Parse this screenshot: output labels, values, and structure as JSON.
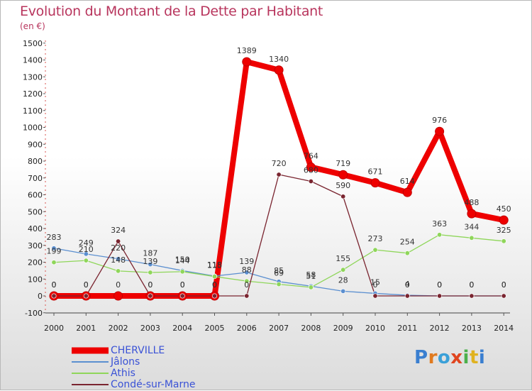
{
  "header": {
    "title": "Evolution du Montant de la Dette par Habitant",
    "subtitle": "(en €)"
  },
  "logo": {
    "text": "Proxiti",
    "letter_colors": [
      "#3a7fd0",
      "#e07a1f",
      "#3aa0d8",
      "#e0451f",
      "#4bb04b",
      "#e0b21f",
      "#3a7fd0"
    ]
  },
  "chart_data": {
    "type": "line",
    "title": "Evolution du Montant de la Dette par Habitant",
    "subtitle": "(en €)",
    "xlabel": "",
    "ylabel": "",
    "x": [
      "2000",
      "2001",
      "2002",
      "2003",
      "2004",
      "2005",
      "2006",
      "2007",
      "2008",
      "2009",
      "2010",
      "2011",
      "2012",
      "2013",
      "2014"
    ],
    "yticks": [
      -100,
      0,
      100,
      200,
      300,
      400,
      500,
      600,
      700,
      800,
      900,
      1000,
      1100,
      1200,
      1300,
      1400,
      1500
    ],
    "ylim": [
      -100,
      1500
    ],
    "grid": false,
    "legend_position": "bottom-left",
    "series": [
      {
        "name": "CHERVILLE",
        "color": "#ee0000",
        "values": [
          0,
          0,
          0,
          0,
          0,
          0,
          1389,
          1340,
          764,
          719,
          671,
          614,
          976,
          488,
          450
        ],
        "labels": [
          "0",
          "0",
          "0",
          "0",
          "0",
          "0",
          "1389",
          "1340",
          "764",
          "719",
          "671",
          "614",
          "976",
          "488",
          "450"
        ]
      },
      {
        "name": "Jâlons",
        "color": "#5b8fd0",
        "values": [
          283,
          249,
          220,
          187,
          150,
          118,
          139,
          85,
          58,
          28,
          15,
          4,
          0,
          0,
          0
        ],
        "labels": [
          "283",
          "249",
          "220",
          "187",
          "150",
          "118",
          "139",
          "85",
          "58",
          "28",
          "15",
          "4",
          "0",
          "0",
          "0"
        ]
      },
      {
        "name": "Athis",
        "color": "#8fd65a",
        "values": [
          199,
          210,
          148,
          139,
          144,
          115,
          88,
          69,
          51,
          155,
          273,
          254,
          363,
          344,
          325
        ],
        "labels": [
          "199",
          "210",
          "148",
          "139",
          "144",
          "115",
          "88",
          "69",
          "51",
          "155",
          "273",
          "254",
          "363",
          "344",
          "325"
        ]
      },
      {
        "name": "Condé-sur-Marne",
        "color": "#7a2530",
        "values": [
          0,
          0,
          324,
          0,
          0,
          0,
          0,
          720,
          680,
          590,
          0,
          0,
          0,
          0,
          0
        ],
        "labels": [
          "0",
          "0",
          "324",
          "0",
          "0",
          "0",
          "0",
          "720",
          "680",
          "590",
          "0",
          "0",
          "0",
          "0",
          "0"
        ]
      }
    ]
  }
}
